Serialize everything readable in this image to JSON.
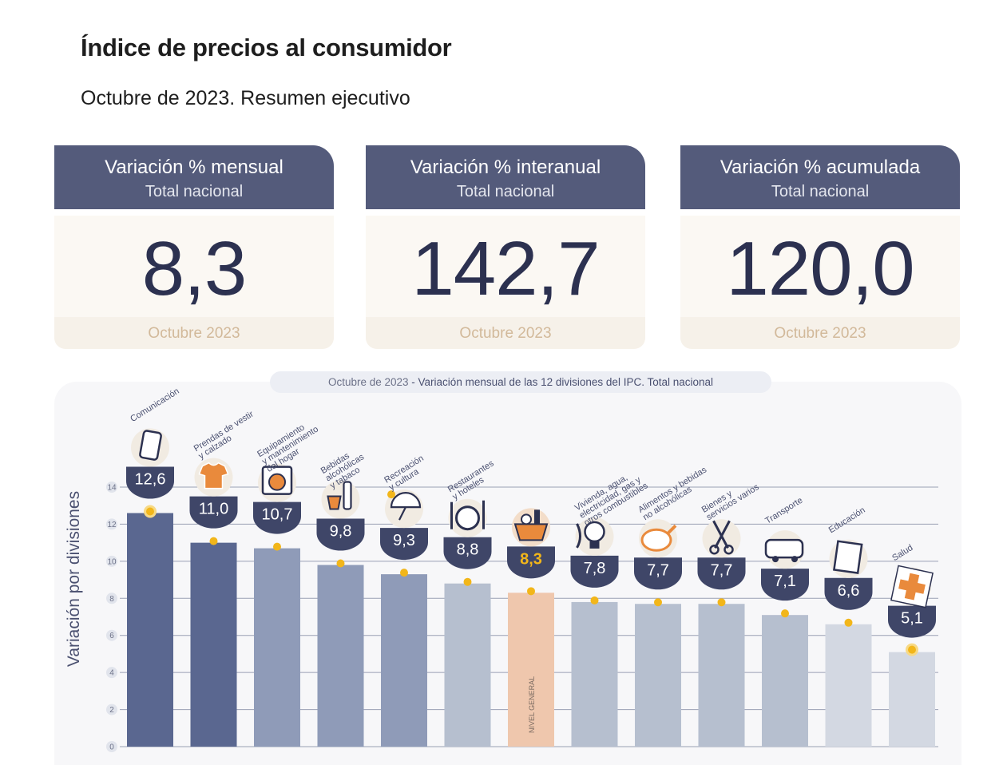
{
  "header": {
    "title": "Índice de precios al consumidor",
    "subtitle": "Octubre de 2023. Resumen ejecutivo"
  },
  "kpis": [
    {
      "title": "Variación % mensual",
      "subtitle": "Total nacional",
      "value": "8,3",
      "period": "Octubre 2023"
    },
    {
      "title": "Variación % interanual",
      "subtitle": "Total nacional",
      "value": "142,7",
      "period": "Octubre 2023"
    },
    {
      "title": "Variación % acumulada",
      "subtitle": "Total nacional",
      "value": "120,0",
      "period": "Octubre 2023"
    }
  ],
  "caption": {
    "period": "Octubre de 2023",
    "text": " - Variación mensual de las 12 divisiones del IPC. Total nacional"
  },
  "chart_data": {
    "type": "bar",
    "title": "Octubre de 2023 - Variación mensual de las 12 divisiones del IPC. Total nacional",
    "ylabel": "Variación por divisiones",
    "ylim": [
      0,
      14
    ],
    "yticks": [
      0,
      2,
      4,
      6,
      8,
      10,
      12,
      14
    ],
    "grid": true,
    "categories": [
      "Comunicación",
      "Prendas de vestir y calzado",
      "Equipamiento y mantenimiento del hogar",
      "Bebidas alcohólicas y tabaco",
      "Recreación y cultura",
      "Restaurantes y hoteles",
      "Nivel general",
      "Vivienda, agua, electricidad, gas y otros combustibles",
      "Alimentos y bebidas no alcohólicas",
      "Bienes y servicios varios",
      "Transporte",
      "Educación",
      "Salud"
    ],
    "label_lines": [
      [
        "Comunicación"
      ],
      [
        "Prendas de vestir",
        "y calzado"
      ],
      [
        "Equipamiento",
        "y mantenimiento",
        "del hogar"
      ],
      [
        "Bebidas",
        "alcohólicas",
        "y tabaco"
      ],
      [
        "Recreación",
        "y cultura"
      ],
      [
        "Restaurantes",
        "y hoteles"
      ],
      [],
      [
        "Vivienda, agua,",
        "electricidad, gas y",
        "otros combustibles"
      ],
      [
        "Alimentos y bebidas",
        "no alcohólicas"
      ],
      [
        "Bienes y",
        "servicios varios"
      ],
      [
        "Transporte"
      ],
      [
        "Educación"
      ],
      [
        "Salud"
      ]
    ],
    "inbar_label": "NIVEL GENERAL",
    "values": [
      12.6,
      11.0,
      10.7,
      9.8,
      9.3,
      8.8,
      8.3,
      7.8,
      7.7,
      7.7,
      7.1,
      6.6,
      5.1
    ],
    "value_labels": [
      "12,6",
      "11,0",
      "10,7",
      "9,8",
      "9,3",
      "8,8",
      "8,3",
      "7,8",
      "7,7",
      "7,7",
      "7,1",
      "6,6",
      "5,1"
    ],
    "icons": [
      "phone-icon",
      "tshirt-icon",
      "washing-machine-icon",
      "bottle-glass-icon",
      "umbrella-sun-icon",
      "dish-cutlery-icon",
      "basket-icon",
      "light-bulb-icon",
      "chicken-icon",
      "scissors-icon",
      "bus-icon",
      "book-icon",
      "medical-cross-icon"
    ],
    "colors": [
      "#5a6790",
      "#5a6790",
      "#8f9bb8",
      "#8f9bb8",
      "#8f9bb8",
      "#b6bfcf",
      "#efc7ad",
      "#b6bfcf",
      "#b6bfcf",
      "#b6bfcf",
      "#b6bfcf",
      "#d3d8e2",
      "#d3d8e2"
    ],
    "marker_color": "#f2b61a",
    "badge_color": "#3f4668"
  }
}
